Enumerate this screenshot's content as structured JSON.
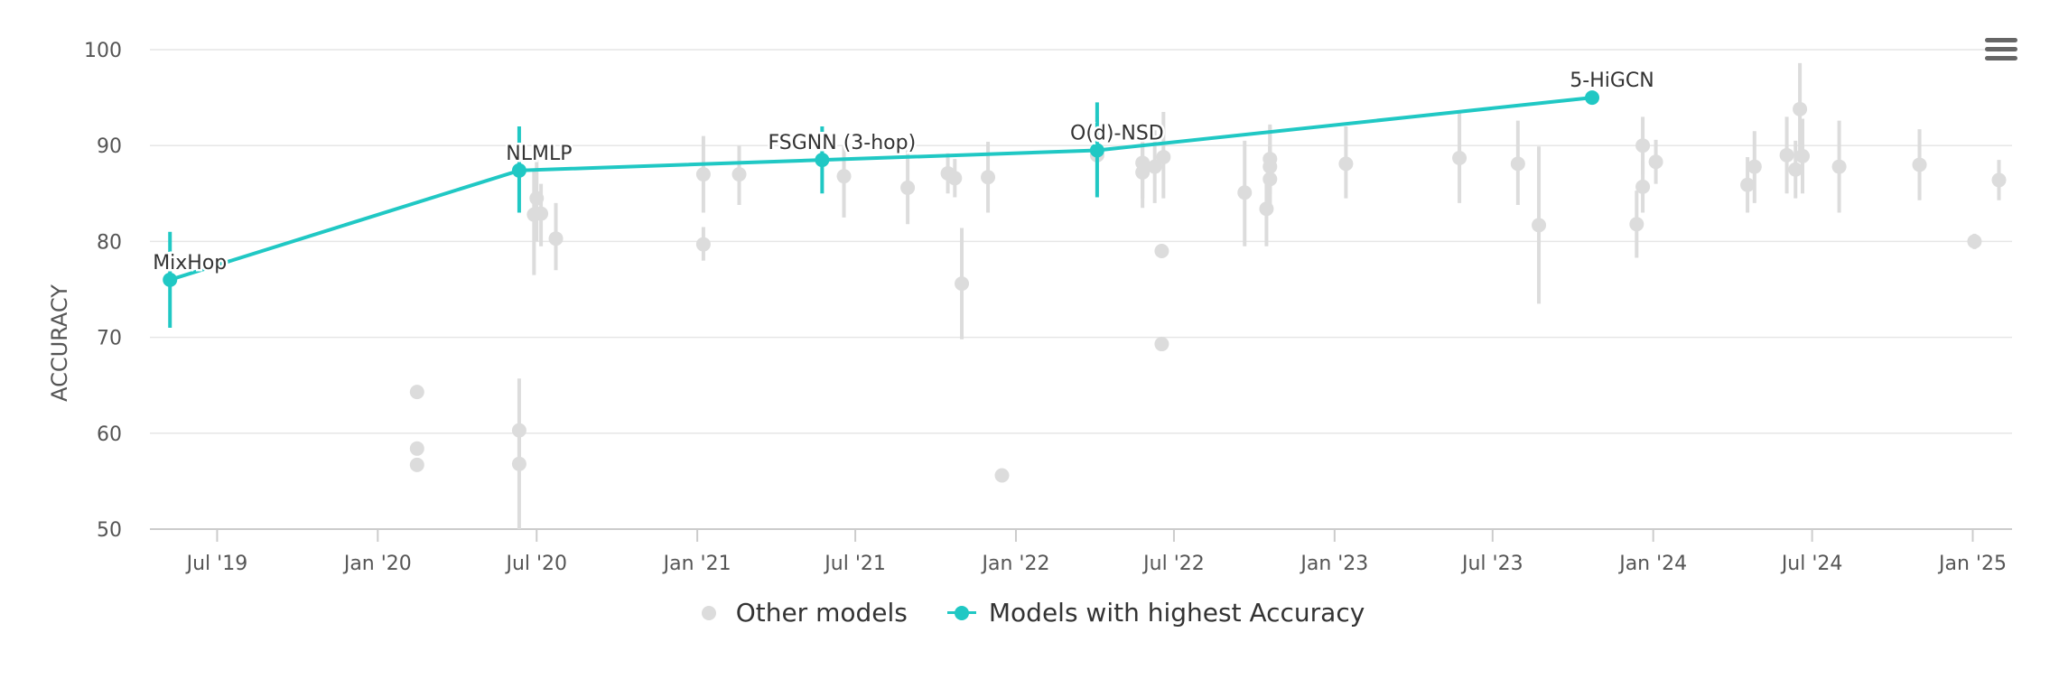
{
  "colors": {
    "other": "#dcdcdc",
    "best": "#20c8c4",
    "axis": "#cccccc",
    "grid": "#e6e6e6",
    "text": "#555555",
    "point_label": "#333333"
  },
  "menu": {
    "icon": "hamburger-menu-icon"
  },
  "chart_data": {
    "type": "scatter",
    "ylabel": "ACCURACY",
    "ylim": [
      50,
      100
    ],
    "yticks": [
      "50",
      "60",
      "70",
      "80",
      "90",
      "100"
    ],
    "xlim": [
      "2019-04-15",
      "2025-02-15"
    ],
    "xticks": [
      {
        "date": "2019-07-01",
        "label": "Jul '19"
      },
      {
        "date": "2020-01-01",
        "label": "Jan '20"
      },
      {
        "date": "2020-07-01",
        "label": "Jul '20"
      },
      {
        "date": "2021-01-01",
        "label": "Jan '21"
      },
      {
        "date": "2021-07-01",
        "label": "Jul '21"
      },
      {
        "date": "2022-01-01",
        "label": "Jan '22"
      },
      {
        "date": "2022-07-01",
        "label": "Jul '22"
      },
      {
        "date": "2023-01-01",
        "label": "Jan '23"
      },
      {
        "date": "2023-07-01",
        "label": "Jul '23"
      },
      {
        "date": "2024-01-01",
        "label": "Jan '24"
      },
      {
        "date": "2024-07-01",
        "label": "Jul '24"
      },
      {
        "date": "2025-01-01",
        "label": "Jan '25"
      }
    ],
    "legend": [
      {
        "key": "other",
        "label": "Other models"
      },
      {
        "key": "best",
        "label": "Models with highest Accuracy"
      }
    ],
    "best_series": [
      {
        "x": "2019-05-08",
        "y": 76.0,
        "low": 71.0,
        "high": 81.0,
        "label": "MixHop"
      },
      {
        "x": "2020-06-11",
        "y": 87.4,
        "low": 83.0,
        "high": 92.0,
        "label": "NLMLP"
      },
      {
        "x": "2021-05-24",
        "y": 88.5,
        "low": 85.0,
        "high": 92.0,
        "label": "FSGNN (3-hop)"
      },
      {
        "x": "2022-04-04",
        "y": 89.5,
        "low": 84.6,
        "high": 94.5,
        "label": "O(d)-NSD"
      },
      {
        "x": "2023-10-23",
        "y": 95.0,
        "low": 95.0,
        "high": 95.0,
        "label": "5-HiGCN"
      }
    ],
    "other_series": [
      {
        "x": "2020-02-15",
        "y": 64.3
      },
      {
        "x": "2020-02-15",
        "y": 58.4
      },
      {
        "x": "2020-02-15",
        "y": 56.7
      },
      {
        "x": "2020-06-11",
        "y": 60.3,
        "low": 56.5,
        "high": 65.7
      },
      {
        "x": "2020-06-11",
        "y": 56.8,
        "low": 50.0,
        "high": 60.0
      },
      {
        "x": "2020-06-28",
        "y": 82.8,
        "low": 76.5,
        "high": 87.5
      },
      {
        "x": "2020-07-01",
        "y": 84.5,
        "low": 80.0,
        "high": 88.5
      },
      {
        "x": "2020-07-06",
        "y": 82.9,
        "low": 79.5,
        "high": 86.0
      },
      {
        "x": "2020-07-23",
        "y": 80.3,
        "low": 77.0,
        "high": 84.0
      },
      {
        "x": "2021-01-08",
        "y": 87.0,
        "low": 83.0,
        "high": 91.0
      },
      {
        "x": "2021-01-08",
        "y": 79.7,
        "low": 78.0,
        "high": 81.5
      },
      {
        "x": "2021-02-18",
        "y": 87.0,
        "low": 83.8,
        "high": 90.0
      },
      {
        "x": "2021-06-18",
        "y": 86.8,
        "low": 82.5,
        "high": 90.0
      },
      {
        "x": "2021-08-30",
        "y": 85.6,
        "low": 81.8,
        "high": 89.5
      },
      {
        "x": "2021-10-15",
        "y": 87.1,
        "low": 85.0,
        "high": 89.2
      },
      {
        "x": "2021-10-23",
        "y": 86.6,
        "low": 84.6,
        "high": 88.6
      },
      {
        "x": "2021-10-31",
        "y": 75.6,
        "low": 69.8,
        "high": 81.4
      },
      {
        "x": "2021-11-30",
        "y": 86.7,
        "low": 83.0,
        "high": 90.4
      },
      {
        "x": "2021-12-16",
        "y": 55.6
      },
      {
        "x": "2022-04-04",
        "y": 89.0,
        "low": 85.0,
        "high": 93.0
      },
      {
        "x": "2022-05-26",
        "y": 88.2,
        "low": 84.5,
        "high": 91.5
      },
      {
        "x": "2022-05-26",
        "y": 87.2,
        "low": 83.5,
        "high": 90.5
      },
      {
        "x": "2022-06-09",
        "y": 87.8,
        "low": 84.0,
        "high": 91.6
      },
      {
        "x": "2022-06-17",
        "y": 79.0
      },
      {
        "x": "2022-06-17",
        "y": 69.3
      },
      {
        "x": "2022-06-19",
        "y": 88.8,
        "low": 84.5,
        "high": 93.5
      },
      {
        "x": "2022-09-20",
        "y": 85.1,
        "low": 79.5,
        "high": 90.5
      },
      {
        "x": "2022-10-15",
        "y": 83.4,
        "low": 79.5,
        "high": 87.0
      },
      {
        "x": "2022-10-19",
        "y": 88.6,
        "low": 85.0,
        "high": 92.2
      },
      {
        "x": "2022-10-19",
        "y": 87.8,
        "low": 83.0,
        "high": 92.0
      },
      {
        "x": "2022-10-19",
        "y": 86.5,
        "low": 83.0,
        "high": 90.0
      },
      {
        "x": "2023-01-14",
        "y": 88.1,
        "low": 84.5,
        "high": 92.0
      },
      {
        "x": "2023-05-24",
        "y": 88.7,
        "low": 84.0,
        "high": 93.4
      },
      {
        "x": "2023-07-30",
        "y": 88.1,
        "low": 83.8,
        "high": 92.6
      },
      {
        "x": "2023-08-23",
        "y": 81.7,
        "low": 73.5,
        "high": 89.9
      },
      {
        "x": "2023-12-13",
        "y": 81.8,
        "low": 78.3,
        "high": 85.3
      },
      {
        "x": "2023-12-20",
        "y": 90.0,
        "low": 87.0,
        "high": 93.0
      },
      {
        "x": "2023-12-20",
        "y": 85.7,
        "low": 83.0,
        "high": 88.4
      },
      {
        "x": "2024-01-04",
        "y": 88.3,
        "low": 86.0,
        "high": 90.6
      },
      {
        "x": "2024-04-18",
        "y": 85.9,
        "low": 83.0,
        "high": 88.8
      },
      {
        "x": "2024-04-26",
        "y": 87.8,
        "low": 84.0,
        "high": 91.5
      },
      {
        "x": "2024-06-02",
        "y": 89.0,
        "low": 85.0,
        "high": 93.0
      },
      {
        "x": "2024-06-12",
        "y": 87.5,
        "low": 84.5,
        "high": 90.5
      },
      {
        "x": "2024-06-17",
        "y": 93.8,
        "low": 89.0,
        "high": 98.6
      },
      {
        "x": "2024-06-20",
        "y": 88.9,
        "low": 85.0,
        "high": 92.8
      },
      {
        "x": "2024-08-01",
        "y": 87.8,
        "low": 83.0,
        "high": 92.6
      },
      {
        "x": "2024-11-01",
        "y": 88.0,
        "low": 84.3,
        "high": 91.7
      },
      {
        "x": "2025-01-03",
        "y": 80.0,
        "low": 79.2,
        "high": 80.8
      },
      {
        "x": "2025-01-31",
        "y": 86.4,
        "low": 84.3,
        "high": 88.5
      }
    ]
  }
}
